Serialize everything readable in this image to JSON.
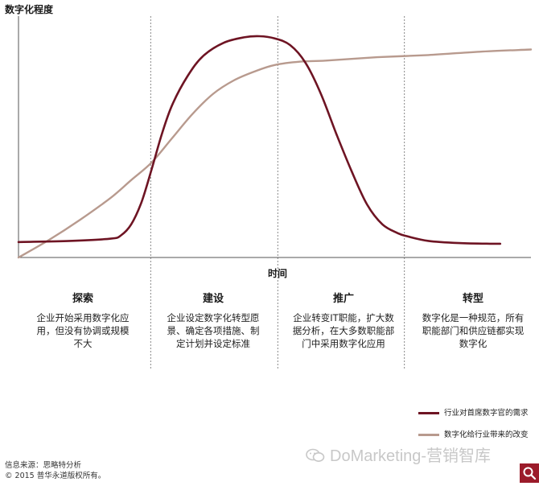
{
  "chart_data": {
    "type": "line",
    "ylabel": "数字化程度",
    "xlabel": "时间",
    "xlim": [
      0,
      100
    ],
    "ylim": [
      0,
      100
    ],
    "grid": false,
    "phase_boundaries": [
      25.8,
      50.6,
      75.3
    ],
    "series": [
      {
        "name": "行业对首席数字官的需求",
        "color": "#6e1423",
        "x": [
          0,
          10,
          18,
          20,
          22,
          24,
          26,
          28,
          30,
          33,
          36,
          40,
          44,
          47,
          50,
          53,
          56,
          59,
          62,
          65,
          68,
          71,
          74,
          76,
          80,
          86,
          92,
          94
        ],
        "y": [
          7,
          7.5,
          8.5,
          10,
          15,
          25,
          40,
          56,
          69,
          82,
          91,
          97,
          99.5,
          100,
          99,
          96,
          88,
          74,
          56,
          39,
          24,
          15,
          11,
          9.5,
          7.5,
          6.5,
          6.2,
          6.2
        ]
      },
      {
        "name": "数字化给行业带来的改变",
        "color": "#b89a8e",
        "x": [
          0,
          6,
          12,
          18,
          22,
          26,
          30,
          34,
          38,
          42,
          46,
          50,
          55,
          60,
          70,
          80,
          90,
          100
        ],
        "y": [
          0,
          8,
          17,
          27,
          35,
          43,
          54,
          65,
          74,
          80,
          84,
          87,
          88.5,
          89,
          90.5,
          91.5,
          93,
          94
        ]
      }
    ]
  },
  "phases": [
    {
      "title": "探索",
      "desc": [
        "企业开始采用数字化应",
        "用，但没有协调或规模",
        "不大"
      ]
    },
    {
      "title": "建设",
      "desc": [
        "企业设定数字化转型愿",
        "景、确定各项措施、制",
        "定计划并设定标准"
      ]
    },
    {
      "title": "推广",
      "desc": [
        "企业转变IT职能，扩大数",
        "据分析，在大多数职能部",
        "门中采用数字化应用"
      ]
    },
    {
      "title": "转型",
      "desc": [
        "数字化是一种规范，所有",
        "职能部门和供应链都实现",
        "数字化"
      ]
    }
  ],
  "source": {
    "line1": "信息来源：思略特分析",
    "line2": "© 2015 普华永道版权所有。"
  },
  "watermark": "DoMarketing-营销智库",
  "colors": {
    "demand": "#6e1423",
    "change": "#b89a8e",
    "axis": "#555555",
    "divider": "#888888",
    "accent": "#9b1b2a"
  },
  "icons": {
    "watermark": "wechat-icon",
    "search": "search-icon"
  }
}
